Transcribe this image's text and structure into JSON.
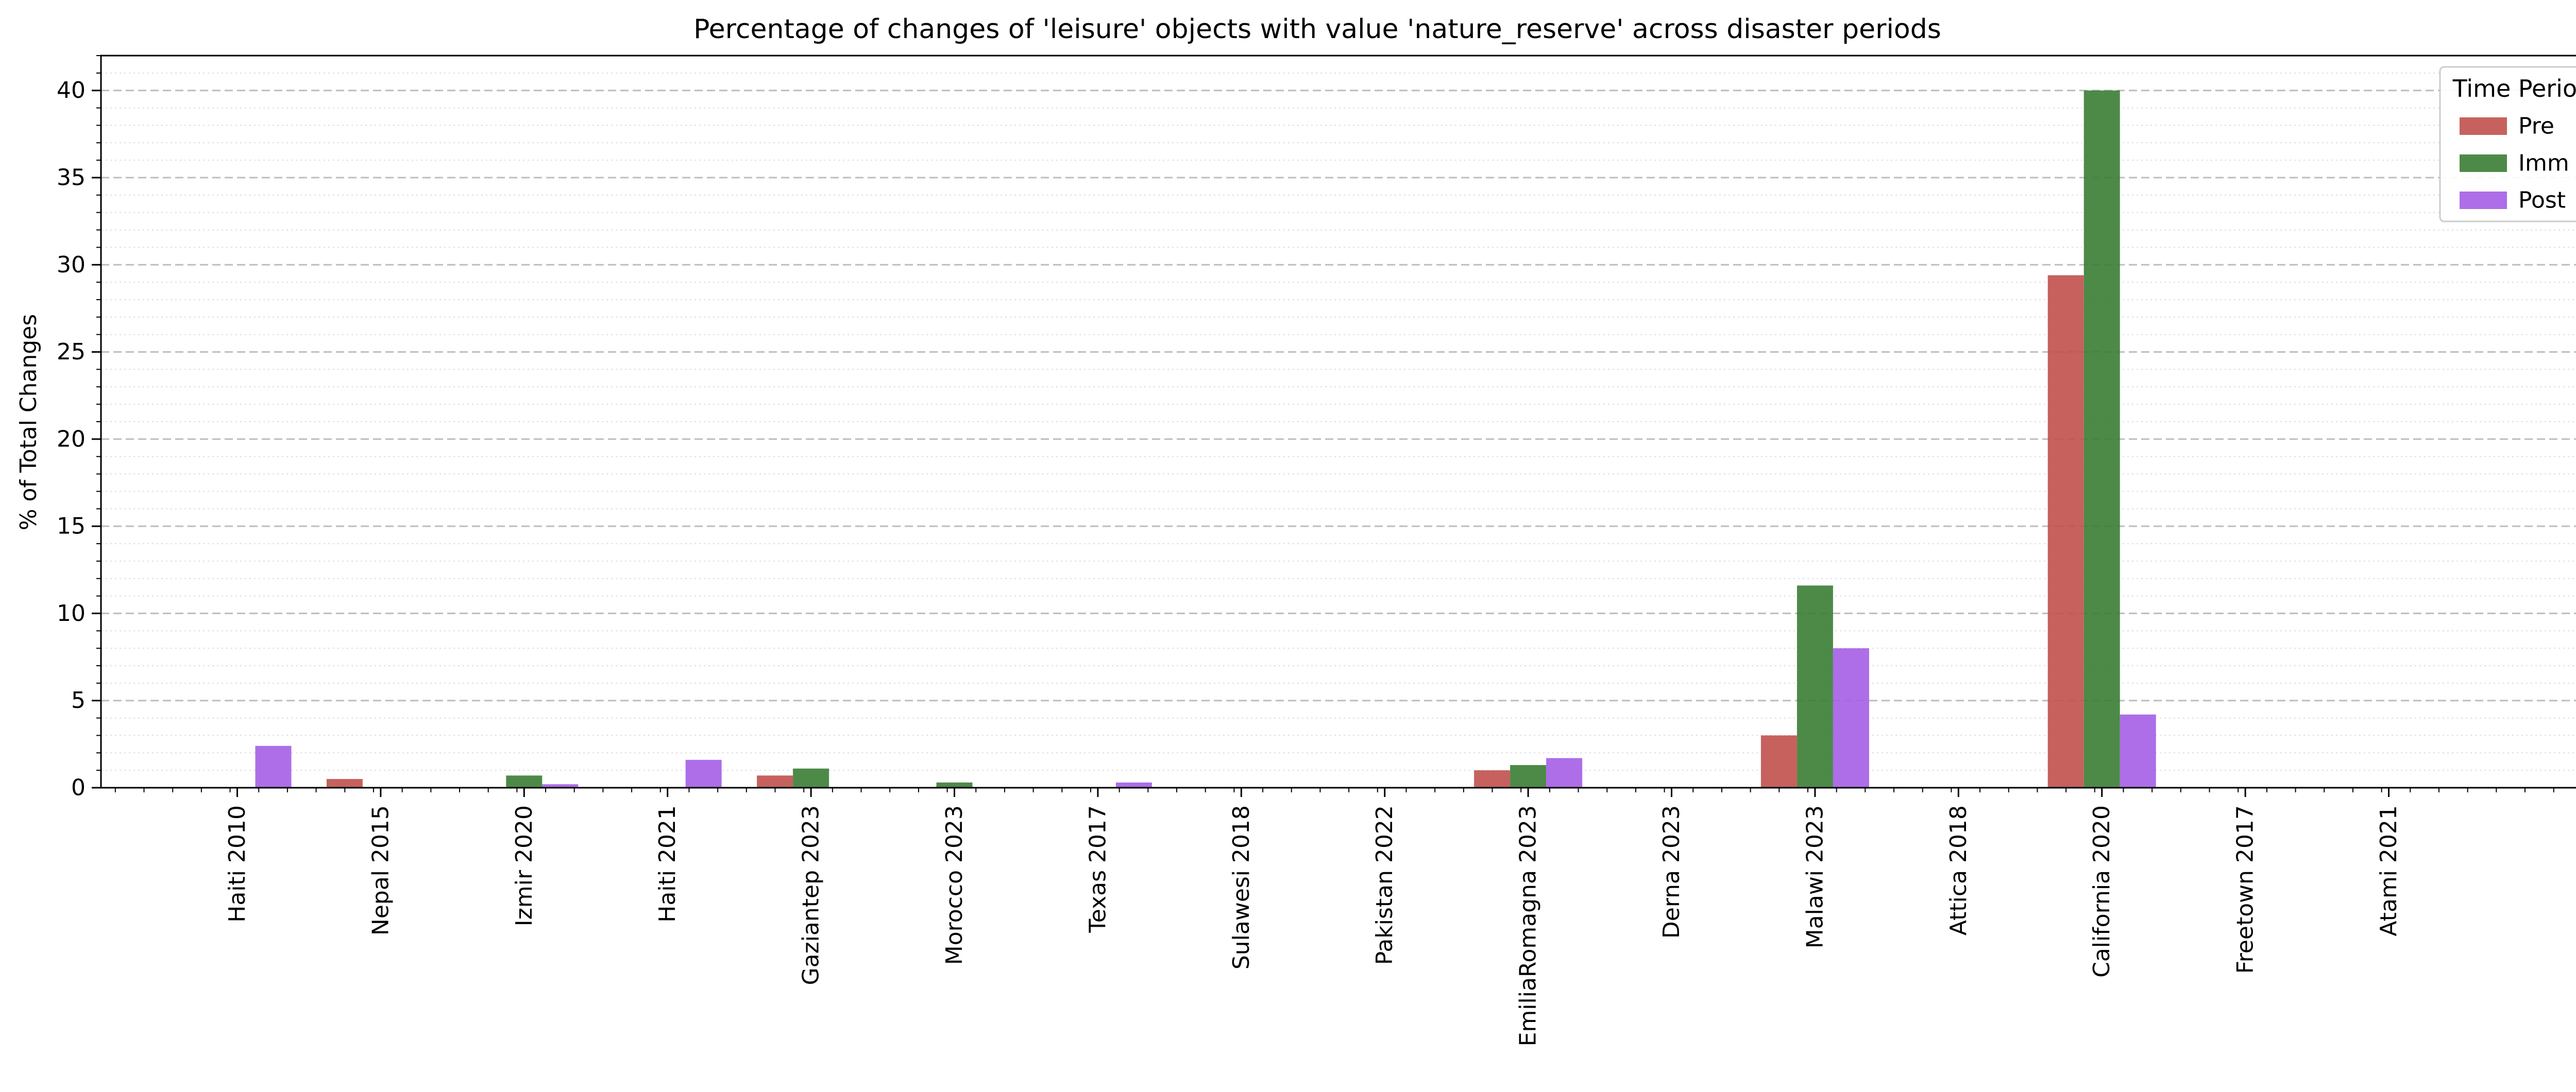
{
  "chart_data": {
    "type": "bar",
    "title": "Percentage of changes of 'leisure' objects with value 'nature_reserve' across disaster periods",
    "xlabel": "",
    "ylabel": "% of Total Changes",
    "ylim": [
      0,
      42
    ],
    "yticks": [
      0,
      5,
      10,
      15,
      20,
      25,
      30,
      35,
      40
    ],
    "grid": "horizontal dashed (major) and dotted (minor)",
    "legend": {
      "title": "Time Period",
      "placement": "top-right"
    },
    "categories": [
      "Haiti 2010",
      "Nepal 2015",
      "Izmir 2020",
      "Haiti 2021",
      "Gaziantep 2023",
      "Morocco 2023",
      "Texas 2017",
      "Sulawesi 2018",
      "Pakistan 2022",
      "EmiliaRomagna 2023",
      "Derna 2023",
      "Malawi 2023",
      "Attica 2018",
      "California 2020",
      "Freetown 2017",
      "Atami 2021"
    ],
    "series": [
      {
        "name": "Pre",
        "color": "#c0504d",
        "values": [
          0,
          0.5,
          0,
          0,
          0.7,
          0,
          0,
          0,
          0,
          1.0,
          0,
          3.0,
          0,
          29.4,
          0,
          0
        ]
      },
      {
        "name": "Imm",
        "color": "#3a7d34",
        "values": [
          0,
          0,
          0.7,
          0,
          1.1,
          0.3,
          0,
          0,
          0,
          1.3,
          0,
          11.6,
          0,
          40.0,
          0,
          0
        ]
      },
      {
        "name": "Post",
        "color": "#a45ee5",
        "values": [
          2.4,
          0,
          0.2,
          1.6,
          0,
          0,
          0.3,
          0,
          0,
          1.7,
          0,
          8.0,
          0,
          4.2,
          0,
          0
        ]
      }
    ]
  }
}
